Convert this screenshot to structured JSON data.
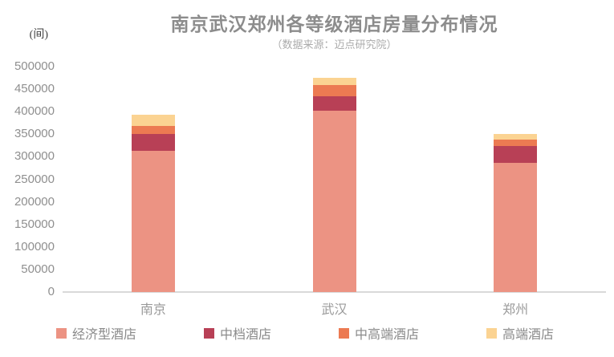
{
  "title": "南京武汉郑州各等级酒店房量分布情况",
  "subtitle": "（数据来源：迈点研究院）",
  "y_unit_label": "(间)",
  "colors": {
    "economy": "#ec9383",
    "midscale": "#b84056",
    "upper_midscale": "#ec7a52",
    "high_end": "#fbd392",
    "axis_line": "#d9d9d9",
    "title_text": "#8c8c8c",
    "subtitle_text": "#ababab",
    "tick_text": "#8f8f8f"
  },
  "chart_data": {
    "type": "bar",
    "stacked": true,
    "title": "南京武汉郑州各等级酒店房量分布情况",
    "subtitle": "（数据来源：迈点研究院）",
    "ylabel": "(间)",
    "xlabel": "",
    "categories": [
      "南京",
      "武汉",
      "郑州"
    ],
    "series": [
      {
        "name": "经济型酒店",
        "color": "#ec9383",
        "values": [
          313000,
          402000,
          286000
        ]
      },
      {
        "name": "中档酒店",
        "color": "#b84056",
        "values": [
          37000,
          32000,
          37500
        ]
      },
      {
        "name": "中高端酒店",
        "color": "#ec7a52",
        "values": [
          18000,
          25000,
          14000
        ]
      },
      {
        "name": "高端酒店",
        "color": "#fbd392",
        "values": [
          25000,
          16000,
          12500
        ]
      }
    ],
    "totals": [
      393000,
      475000,
      350000
    ],
    "ylim": [
      0,
      500000
    ],
    "ytick_step": 50000,
    "yticks": [
      0,
      50000,
      100000,
      150000,
      200000,
      250000,
      300000,
      350000,
      400000,
      450000,
      500000
    ],
    "grid": false,
    "legend_position": "bottom"
  }
}
